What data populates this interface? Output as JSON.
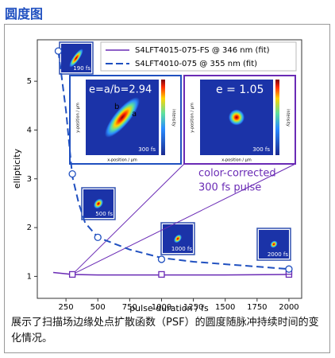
{
  "header": {
    "title": "圆度图"
  },
  "chart_data": {
    "type": "line",
    "x_label": "pulse duration / fs",
    "y_label": "ellipticity",
    "xlim": [
      25,
      2100
    ],
    "ylim": [
      0.55,
      5.85
    ],
    "xticks": [
      250,
      500,
      750,
      1000,
      1250,
      1500,
      1750,
      2000
    ],
    "yticks": [
      1,
      2,
      3,
      4,
      5
    ],
    "series": [
      {
        "name": "S4LFT4015-075-FS @ 346 nm (fit)",
        "color": "#6a2bb5",
        "dash": false,
        "x": [
          150,
          300,
          500,
          750,
          1000,
          1500,
          2000
        ],
        "values": [
          1.08,
          1.04,
          1.03,
          1.03,
          1.03,
          1.03,
          1.04
        ],
        "markers": {
          "shape": "square",
          "x": [
            300,
            1000,
            2000,
            2000
          ],
          "values": [
            1.04,
            1.04,
            1.04,
            1.1
          ]
        }
      },
      {
        "name": "S4LFT4010-075 @ 355 nm (fit)",
        "color": "#2050c0",
        "dash": true,
        "x": [
          190,
          250,
          300,
          350,
          400,
          450,
          500,
          750,
          1000,
          1250,
          1500,
          1750,
          2000
        ],
        "values": [
          5.62,
          4.4,
          3.05,
          2.5,
          2.1,
          1.95,
          1.8,
          1.55,
          1.38,
          1.3,
          1.25,
          1.2,
          1.15
        ],
        "markers": {
          "shape": "circle",
          "x": [
            190,
            300,
            500,
            1000,
            2000
          ],
          "values": [
            5.62,
            3.1,
            1.8,
            1.35,
            1.15
          ]
        }
      }
    ],
    "insets": [
      {
        "label": "190 fs"
      },
      {
        "label": "500 fs"
      },
      {
        "label": "1000 fs"
      },
      {
        "label": "2000 fs"
      },
      {
        "title": "e=a/b=2.94",
        "label": "300 fs",
        "x_label": "x-position / μm",
        "y_label": "y-position / μm",
        "colorbar_label": "intensity",
        "axis_marks": [
          "a",
          "b"
        ]
      },
      {
        "title": "e = 1.05",
        "label": "300 fs",
        "x_label": "x-position / μm",
        "y_label": "y-position / μm",
        "colorbar_label": "intensity"
      }
    ],
    "annotation": [
      "color-corrected",
      "300 fs pulse"
    ]
  },
  "caption": "展示了扫描场边缘处点扩散函数（PSF）的圆度随脉冲持续时间的变化情况。"
}
